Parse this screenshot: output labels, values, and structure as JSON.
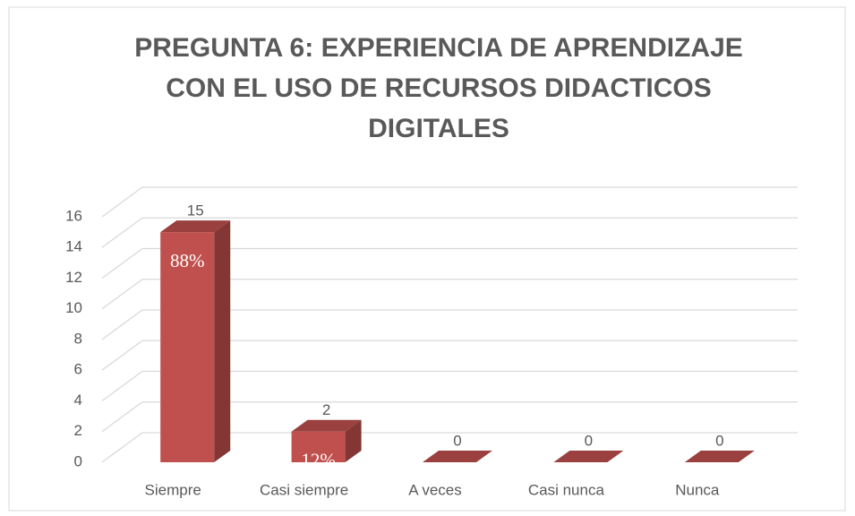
{
  "chart_data": {
    "type": "bar3d",
    "title": [
      "PREGUNTA 6: EXPERIENCIA DE APRENDIZAJE",
      "CON EL USO DE RECURSOS DIDACTICOS",
      "DIGITALES"
    ],
    "categories": [
      "Siempre",
      "Casi siempre",
      "A veces",
      "Casi nunca",
      "Nunca"
    ],
    "values": [
      15,
      2,
      0,
      0,
      0
    ],
    "percent_labels": [
      "88%",
      "12%",
      null,
      null,
      null
    ],
    "color": "#c0504d",
    "ylim": [
      0,
      16
    ],
    "yticks": [
      0,
      2,
      4,
      6,
      8,
      10,
      12,
      14,
      16
    ],
    "grid": true
  }
}
